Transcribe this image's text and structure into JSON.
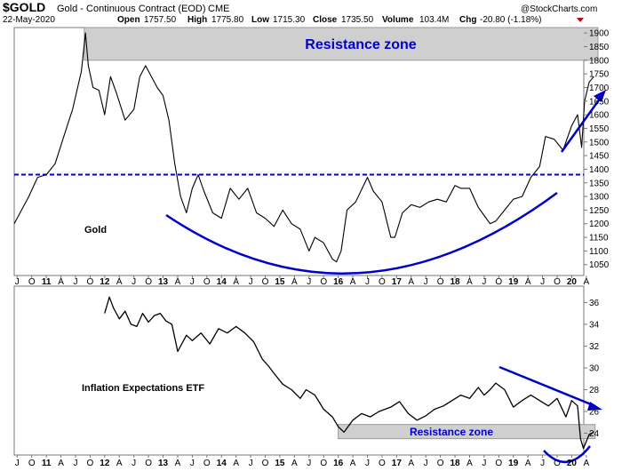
{
  "header": {
    "symbol": "$GOLD",
    "name": "Gold - Continuous Contract (EOD)",
    "exchange": "CME",
    "date": "22-May-2020",
    "open_label": "Open",
    "open": "1757.50",
    "high_label": "High",
    "high": "1775.80",
    "low_label": "Low",
    "low": "1715.30",
    "close_label": "Close",
    "close": "1735.50",
    "volume_label": "Volume",
    "volume": "103.4M",
    "chg_label": "Chg",
    "chg": "-20.80 (-1.18%)",
    "watermark": "@StockCharts.com"
  },
  "colors": {
    "price": "#000000",
    "annotation": "#0000cc",
    "zone_fill": "#cfcfcf",
    "zone_stroke": "#9a9a9a",
    "down": "#c0000e"
  },
  "chart_data": [
    {
      "type": "line",
      "name": "gold",
      "title": "Gold",
      "ylim": [
        1010,
        1920
      ],
      "yticks": [
        "1050",
        "1100",
        "1150",
        "1200",
        "1250",
        "1300",
        "1350",
        "1400",
        "1450",
        "1500",
        "1550",
        "1600",
        "1650",
        "1700",
        "1750",
        "1800",
        "1850",
        "1900"
      ],
      "x": [
        2010.45,
        2010.55,
        2010.7,
        2010.85,
        2011.0,
        2011.15,
        2011.3,
        2011.45,
        2011.6,
        2011.67,
        2011.72,
        2011.8,
        2011.9,
        2012.0,
        2012.1,
        2012.2,
        2012.35,
        2012.5,
        2012.6,
        2012.7,
        2012.8,
        2012.9,
        2013.0,
        2013.1,
        2013.2,
        2013.3,
        2013.4,
        2013.5,
        2013.6,
        2013.7,
        2013.85,
        2014.0,
        2014.15,
        2014.3,
        2014.45,
        2014.6,
        2014.75,
        2014.9,
        2015.05,
        2015.2,
        2015.35,
        2015.5,
        2015.6,
        2015.75,
        2015.9,
        2015.97,
        2016.05,
        2016.15,
        2016.3,
        2016.5,
        2016.6,
        2016.75,
        2016.9,
        2016.97,
        2017.1,
        2017.25,
        2017.4,
        2017.55,
        2017.7,
        2017.85,
        2018.0,
        2018.1,
        2018.25,
        2018.4,
        2018.5,
        2018.6,
        2018.7,
        2018.85,
        2019.0,
        2019.15,
        2019.3,
        2019.45,
        2019.55,
        2019.7,
        2019.85,
        2020.0,
        2020.1,
        2020.17,
        2020.22,
        2020.3,
        2020.38
      ],
      "values": [
        1200,
        1240,
        1300,
        1370,
        1380,
        1420,
        1520,
        1620,
        1760,
        1900,
        1780,
        1700,
        1690,
        1600,
        1740,
        1680,
        1580,
        1620,
        1740,
        1780,
        1740,
        1700,
        1670,
        1580,
        1420,
        1300,
        1240,
        1330,
        1380,
        1320,
        1240,
        1220,
        1330,
        1290,
        1330,
        1240,
        1220,
        1190,
        1250,
        1200,
        1180,
        1100,
        1150,
        1130,
        1070,
        1060,
        1100,
        1250,
        1280,
        1370,
        1320,
        1280,
        1150,
        1150,
        1240,
        1270,
        1260,
        1280,
        1290,
        1280,
        1340,
        1330,
        1330,
        1260,
        1230,
        1200,
        1210,
        1250,
        1290,
        1300,
        1370,
        1410,
        1520,
        1510,
        1470,
        1560,
        1600,
        1480,
        1650,
        1720,
        1740
      ],
      "reference_line": {
        "y": 1380,
        "style": "dashed"
      },
      "zone": {
        "label": "Resistance zone",
        "y_range": [
          1800,
          1920
        ],
        "x_range": [
          2011.65,
          2020.45
        ]
      },
      "annotations": [
        {
          "type": "arc",
          "label": "cup (rounded bottom)"
        },
        {
          "type": "arrow",
          "direction": "up"
        }
      ]
    },
    {
      "type": "line",
      "name": "inflation",
      "title": "Inflation Expectations ETF",
      "ylim": [
        22,
        37.5
      ],
      "yticks": [
        "24",
        "26",
        "28",
        "30",
        "32",
        "34",
        "36"
      ],
      "x": [
        2012.0,
        2012.08,
        2012.15,
        2012.25,
        2012.35,
        2012.45,
        2012.55,
        2012.65,
        2012.75,
        2012.85,
        2012.95,
        2013.05,
        2013.15,
        2013.25,
        2013.4,
        2013.5,
        2013.65,
        2013.8,
        2013.95,
        2014.1,
        2014.25,
        2014.4,
        2014.55,
        2014.7,
        2014.8,
        2014.9,
        2015.05,
        2015.2,
        2015.35,
        2015.45,
        2015.6,
        2015.75,
        2015.9,
        2016.0,
        2016.1,
        2016.25,
        2016.4,
        2016.55,
        2016.7,
        2016.9,
        2017.05,
        2017.2,
        2017.35,
        2017.5,
        2017.65,
        2017.8,
        2017.95,
        2018.1,
        2018.25,
        2018.4,
        2018.5,
        2018.6,
        2018.7,
        2018.85,
        2019.0,
        2019.15,
        2019.3,
        2019.45,
        2019.6,
        2019.75,
        2019.9,
        2020.0,
        2020.1,
        2020.15,
        2020.2,
        2020.3,
        2020.38
      ],
      "values": [
        35,
        36.5,
        35.5,
        34.5,
        35.2,
        34,
        33.8,
        35,
        34.2,
        34.8,
        35,
        34.3,
        34,
        31.5,
        33,
        32.5,
        33.2,
        32.2,
        33.6,
        33.2,
        33.8,
        33.2,
        32.4,
        30.8,
        30.2,
        29.5,
        28.5,
        28,
        27.2,
        28,
        27.5,
        26.2,
        25.5,
        24.6,
        24.1,
        25.2,
        25.8,
        25.5,
        26,
        26.4,
        26.9,
        25.8,
        25.2,
        25.6,
        26.2,
        26.5,
        27,
        27.5,
        27.2,
        28.2,
        27.5,
        28,
        28.6,
        28,
        26.4,
        27,
        27.5,
        27,
        26.5,
        27.2,
        25.5,
        27,
        26.5,
        23.5,
        22.6,
        23.9,
        24.1
      ],
      "zone": {
        "label": "Resistance zone",
        "y_range": [
          23.5,
          24.8
        ],
        "x_range": [
          2016.0,
          2020.4
        ]
      },
      "annotations": [
        {
          "type": "arrow",
          "direction": "down"
        },
        {
          "type": "arc",
          "label": "bottom"
        }
      ]
    }
  ],
  "x_axis": {
    "labels": [
      {
        "t": 2010.5,
        "label": "J",
        "year": false
      },
      {
        "t": 2010.75,
        "label": "O",
        "year": false
      },
      {
        "t": 2011.0,
        "label": "11",
        "year": true
      },
      {
        "t": 2011.25,
        "label": "A",
        "year": false
      },
      {
        "t": 2011.5,
        "label": "J",
        "year": false
      },
      {
        "t": 2011.75,
        "label": "O",
        "year": false
      },
      {
        "t": 2012.0,
        "label": "12",
        "year": true
      },
      {
        "t": 2012.25,
        "label": "A",
        "year": false
      },
      {
        "t": 2012.5,
        "label": "J",
        "year": false
      },
      {
        "t": 2012.75,
        "label": "O",
        "year": false
      },
      {
        "t": 2013.0,
        "label": "13",
        "year": true
      },
      {
        "t": 2013.25,
        "label": "A",
        "year": false
      },
      {
        "t": 2013.5,
        "label": "J",
        "year": false
      },
      {
        "t": 2013.75,
        "label": "O",
        "year": false
      },
      {
        "t": 2014.0,
        "label": "14",
        "year": true
      },
      {
        "t": 2014.25,
        "label": "A",
        "year": false
      },
      {
        "t": 2014.5,
        "label": "J",
        "year": false
      },
      {
        "t": 2014.75,
        "label": "O",
        "year": false
      },
      {
        "t": 2015.0,
        "label": "15",
        "year": true
      },
      {
        "t": 2015.25,
        "label": "A",
        "year": false
      },
      {
        "t": 2015.5,
        "label": "J",
        "year": false
      },
      {
        "t": 2015.75,
        "label": "O",
        "year": false
      },
      {
        "t": 2016.0,
        "label": "16",
        "year": true
      },
      {
        "t": 2016.25,
        "label": "A",
        "year": false
      },
      {
        "t": 2016.5,
        "label": "J",
        "year": false
      },
      {
        "t": 2016.75,
        "label": "O",
        "year": false
      },
      {
        "t": 2017.0,
        "label": "17",
        "year": true
      },
      {
        "t": 2017.25,
        "label": "A",
        "year": false
      },
      {
        "t": 2017.5,
        "label": "J",
        "year": false
      },
      {
        "t": 2017.75,
        "label": "O",
        "year": false
      },
      {
        "t": 2018.0,
        "label": "18",
        "year": true
      },
      {
        "t": 2018.25,
        "label": "A",
        "year": false
      },
      {
        "t": 2018.5,
        "label": "J",
        "year": false
      },
      {
        "t": 2018.75,
        "label": "O",
        "year": false
      },
      {
        "t": 2019.0,
        "label": "19",
        "year": true
      },
      {
        "t": 2019.25,
        "label": "A",
        "year": false
      },
      {
        "t": 2019.5,
        "label": "J",
        "year": false
      },
      {
        "t": 2019.75,
        "label": "O",
        "year": false
      },
      {
        "t": 2020.0,
        "label": "20",
        "year": true
      },
      {
        "t": 2020.25,
        "label": "A",
        "year": false
      }
    ]
  }
}
